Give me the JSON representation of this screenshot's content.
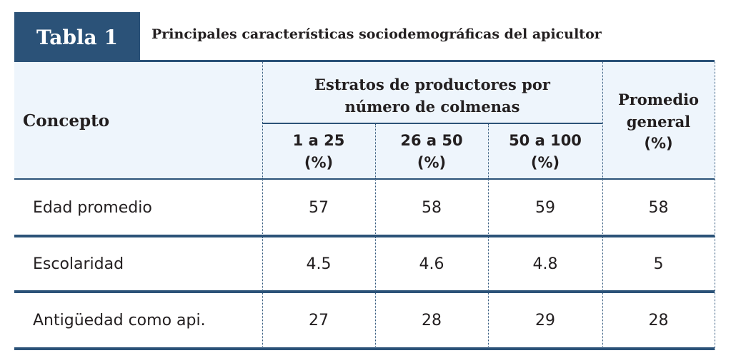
{
  "table": {
    "tag": "Tabla 1",
    "title": "Principales características sociodemográficas del apicultor",
    "header": {
      "concept": "Concepto",
      "group_line1": "Estratos de productores por",
      "group_line2": "número de colmenas",
      "strata": [
        {
          "range": "1 a 25",
          "unit": "(%)"
        },
        {
          "range": "26 a 50",
          "unit": "(%)"
        },
        {
          "range": "50 a 100",
          "unit": "(%)"
        }
      ],
      "avg_line1": "Promedio",
      "avg_line2": "general",
      "avg_unit": "(%)"
    },
    "rows": [
      {
        "concept": "Edad promedio",
        "values": [
          "57",
          "58",
          "59",
          "58"
        ]
      },
      {
        "concept": "Escolaridad",
        "values": [
          "4.5",
          "4.6",
          "4.8",
          "5"
        ]
      },
      {
        "concept": "Antigüedad como api.",
        "values": [
          "27",
          "28",
          "29",
          "28"
        ]
      }
    ]
  }
}
